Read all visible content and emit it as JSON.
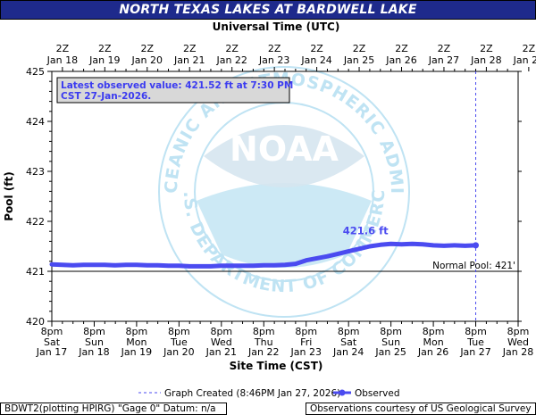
{
  "title": "NORTH TEXAS LAKES AT BARDWELL LAKE",
  "top_axis_title": "Universal Time (UTC)",
  "top_ticks": [
    {
      "line1": "2Z",
      "line2": "Jan 18"
    },
    {
      "line1": "2Z",
      "line2": "Jan 19"
    },
    {
      "line1": "2Z",
      "line2": "Jan 20"
    },
    {
      "line1": "2Z",
      "line2": "Jan 21"
    },
    {
      "line1": "2Z",
      "line2": "Jan 22"
    },
    {
      "line1": "2Z",
      "line2": "Jan 23"
    },
    {
      "line1": "2Z",
      "line2": "Jan 24"
    },
    {
      "line1": "2Z",
      "line2": "Jan 25"
    },
    {
      "line1": "2Z",
      "line2": "Jan 26"
    },
    {
      "line1": "2Z",
      "line2": "Jan 27"
    },
    {
      "line1": "2Z",
      "line2": "Jan 28"
    },
    {
      "line1": "2Z",
      "line2": "Jan 29"
    }
  ],
  "bottom_axis_title": "Site Time (CST)",
  "bottom_ticks": [
    {
      "line1": "8pm",
      "line2": "Sat",
      "line3": "Jan 17"
    },
    {
      "line1": "8pm",
      "line2": "Sun",
      "line3": "Jan 18"
    },
    {
      "line1": "8pm",
      "line2": "Mon",
      "line3": "Jan 19"
    },
    {
      "line1": "8pm",
      "line2": "Tue",
      "line3": "Jan 20"
    },
    {
      "line1": "8pm",
      "line2": "Wed",
      "line3": "Jan 21"
    },
    {
      "line1": "8pm",
      "line2": "Thu",
      "line3": "Jan 22"
    },
    {
      "line1": "8pm",
      "line2": "Fri",
      "line3": "Jan 23"
    },
    {
      "line1": "8pm",
      "line2": "Sat",
      "line3": "Jan 24"
    },
    {
      "line1": "8pm",
      "line2": "Sun",
      "line3": "Jan 25"
    },
    {
      "line1": "8pm",
      "line2": "Mon",
      "line3": "Jan 26"
    },
    {
      "line1": "8pm",
      "line2": "Tue",
      "line3": "Jan 27"
    },
    {
      "line1": "8pm",
      "line2": "Wed",
      "line3": "Jan 28"
    }
  ],
  "latest_box": {
    "line1": "Latest observed value: 421.52 ft at 7:30 PM",
    "line2": "CST 27-Jan-2026."
  },
  "normal_pool_label": "Normal Pool: 421'",
  "peak_label": "421.6 ft",
  "legend": {
    "created": "Graph Created (8:46PM Jan 27, 2026)",
    "observed": "Observed"
  },
  "footer": {
    "left": "BDWT2(plotting HPIRG) \"Gage 0\" Datum: n/a",
    "right": "Observations courtesy of US Geological Survey"
  },
  "watermark": {
    "center": "NOAA",
    "ring_top": "NATIONAL OCEANIC AND ATMOSPHERIC ADMINISTRATION",
    "ring_bottom": "U.S. DEPARTMENT OF COMMERCE"
  },
  "colors": {
    "title_bg": "#1e2a8c",
    "series": "#4b4bf0",
    "box_text": "#3b3bf0",
    "watermark": "#bfe3f3"
  },
  "chart_data": {
    "type": "line",
    "title": "NORTH TEXAS LAKES AT BARDWELL LAKE",
    "xlabel": "Site Time (CST)",
    "x2label": "Universal Time (UTC)",
    "ylabel": "Pool (ft)",
    "ylim": [
      420,
      425
    ],
    "yticks": [
      420,
      421,
      422,
      423,
      424,
      425
    ],
    "xlim_days": [
      0,
      11
    ],
    "x_unit": "days since 8pm Sat Jan 17 (CST)",
    "grid": false,
    "legend_position": "bottom",
    "reference_lines": [
      {
        "type": "horizontal",
        "value": 421.0,
        "label": "Normal Pool: 421'"
      },
      {
        "type": "vertical",
        "value": 10.0,
        "label": "Graph Created (8:46PM Jan 27, 2026)"
      }
    ],
    "series": [
      {
        "name": "Observed",
        "x": [
          0.0,
          0.25,
          0.5,
          0.75,
          1.0,
          1.25,
          1.5,
          1.75,
          2.0,
          2.25,
          2.5,
          2.75,
          3.0,
          3.25,
          3.5,
          3.75,
          4.0,
          4.25,
          4.5,
          4.75,
          5.0,
          5.25,
          5.5,
          5.75,
          6.0,
          6.25,
          6.5,
          6.75,
          7.0,
          7.25,
          7.5,
          7.75,
          8.0,
          8.25,
          8.5,
          8.75,
          9.0,
          9.25,
          9.5,
          9.75,
          10.0
        ],
        "y": [
          421.14,
          421.13,
          421.12,
          421.13,
          421.13,
          421.13,
          421.12,
          421.13,
          421.13,
          421.12,
          421.12,
          421.11,
          421.11,
          421.1,
          421.1,
          421.1,
          421.11,
          421.11,
          421.11,
          421.11,
          421.12,
          421.12,
          421.13,
          421.15,
          421.22,
          421.26,
          421.3,
          421.35,
          421.4,
          421.45,
          421.5,
          421.53,
          421.55,
          421.54,
          421.55,
          421.54,
          421.52,
          421.51,
          421.52,
          421.51,
          421.52
        ]
      }
    ],
    "annotations": [
      {
        "text": "421.6 ft",
        "x": 7.4,
        "y": 421.6
      },
      {
        "text": "Latest observed value: 421.52 ft at 7:30 PM CST 27-Jan-2026.",
        "x": 10.0,
        "y": 421.52
      }
    ]
  }
}
